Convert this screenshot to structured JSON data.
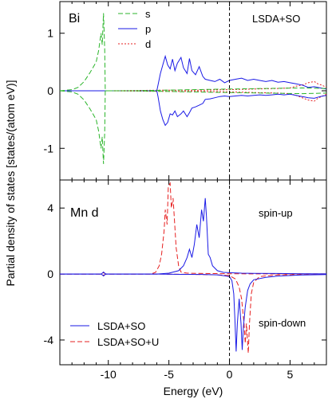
{
  "chart_data": [
    {
      "type": "line",
      "panel_label": "Bi",
      "method_label": "LSDA+SO",
      "xlim": [
        -14,
        8
      ],
      "ylim": [
        -1.55,
        1.55
      ],
      "x_ticks": [
        -10,
        -5,
        0,
        5
      ],
      "y_ticks": [
        -1,
        0,
        1
      ],
      "y_tick_labels": [
        "-1",
        "0",
        "1"
      ],
      "legend": {
        "position": "top-center"
      },
      "series": [
        {
          "name": "s",
          "color": "#2bb52b",
          "dash": "dashed",
          "up": [
            [
              -14,
              0
            ],
            [
              -13.5,
              0.01
            ],
            [
              -13,
              0.02
            ],
            [
              -12.5,
              0.06
            ],
            [
              -12,
              0.16
            ],
            [
              -11.5,
              0.32
            ],
            [
              -11,
              0.5
            ],
            [
              -10.8,
              0.7
            ],
            [
              -10.6,
              1.0
            ],
            [
              -10.5,
              0.8
            ],
            [
              -10.4,
              1.35
            ],
            [
              -10.3,
              0.72
            ],
            [
              -10.25,
              0
            ],
            [
              -8,
              0
            ],
            [
              -5.5,
              0.01
            ],
            [
              -3,
              0.02
            ],
            [
              0,
              0.03
            ],
            [
              3,
              0.04
            ],
            [
              6,
              0.05
            ],
            [
              8,
              0.04
            ]
          ],
          "down": [
            [
              -14,
              0
            ],
            [
              -13.5,
              -0.01
            ],
            [
              -13,
              -0.02
            ],
            [
              -12.5,
              -0.06
            ],
            [
              -12,
              -0.16
            ],
            [
              -11.5,
              -0.32
            ],
            [
              -11,
              -0.5
            ],
            [
              -10.8,
              -0.7
            ],
            [
              -10.6,
              -1.0
            ],
            [
              -10.5,
              -0.8
            ],
            [
              -10.4,
              -1.27
            ],
            [
              -10.3,
              -0.72
            ],
            [
              -10.25,
              0
            ],
            [
              -8,
              0
            ],
            [
              -5.5,
              -0.01
            ],
            [
              -3,
              -0.02
            ],
            [
              0,
              -0.03
            ],
            [
              3,
              -0.04
            ],
            [
              6,
              -0.05
            ],
            [
              8,
              -0.04
            ]
          ]
        },
        {
          "name": "p",
          "color": "#1a1ae6",
          "dash": "solid",
          "up": [
            [
              -14,
              0
            ],
            [
              -6,
              0
            ],
            [
              -5.9,
              0.1
            ],
            [
              -5.7,
              0.3
            ],
            [
              -5.5,
              0.45
            ],
            [
              -5.3,
              0.6
            ],
            [
              -5.1,
              0.45
            ],
            [
              -4.9,
              0.38
            ],
            [
              -4.7,
              0.55
            ],
            [
              -4.5,
              0.35
            ],
            [
              -4.3,
              0.48
            ],
            [
              -4.0,
              0.58
            ],
            [
              -3.8,
              0.4
            ],
            [
              -3.5,
              0.3
            ],
            [
              -3.3,
              0.56
            ],
            [
              -3.1,
              0.35
            ],
            [
              -2.8,
              0.28
            ],
            [
              -2.5,
              0.42
            ],
            [
              -2.2,
              0.25
            ],
            [
              -2.0,
              0.2
            ],
            [
              -1.6,
              0.18
            ],
            [
              -1.2,
              0.16
            ],
            [
              -0.8,
              0.2
            ],
            [
              -0.4,
              0.14
            ],
            [
              0,
              0.18
            ],
            [
              0.5,
              0.2
            ],
            [
              1,
              0.22
            ],
            [
              1.5,
              0.18
            ],
            [
              2,
              0.2
            ],
            [
              2.5,
              0.18
            ],
            [
              3,
              0.16
            ],
            [
              3.5,
              0.18
            ],
            [
              4,
              0.15
            ],
            [
              4.5,
              0.16
            ],
            [
              5,
              0.14
            ],
            [
              5.5,
              0.12
            ],
            [
              6,
              0.1
            ],
            [
              6.5,
              0.06
            ],
            [
              7,
              0.07
            ],
            [
              7.5,
              0.05
            ],
            [
              8,
              0.03
            ]
          ],
          "down": [
            [
              -14,
              0
            ],
            [
              -6,
              0
            ],
            [
              -5.9,
              -0.1
            ],
            [
              -5.7,
              -0.35
            ],
            [
              -5.5,
              -0.5
            ],
            [
              -5.3,
              -0.6
            ],
            [
              -5.1,
              -0.55
            ],
            [
              -4.9,
              -0.4
            ],
            [
              -4.7,
              -0.42
            ],
            [
              -4.5,
              -0.35
            ],
            [
              -4.3,
              -0.45
            ],
            [
              -4.0,
              -0.4
            ],
            [
              -3.8,
              -0.35
            ],
            [
              -3.5,
              -0.45
            ],
            [
              -3.3,
              -0.38
            ],
            [
              -3.1,
              -0.3
            ],
            [
              -2.8,
              -0.28
            ],
            [
              -2.5,
              -0.25
            ],
            [
              -2.2,
              -0.22
            ],
            [
              -2.0,
              -0.15
            ],
            [
              -1.6,
              -0.14
            ],
            [
              -1.2,
              -0.12
            ],
            [
              -0.8,
              -0.1
            ],
            [
              -0.4,
              -0.09
            ],
            [
              0,
              -0.1
            ],
            [
              0.5,
              -0.09
            ],
            [
              1,
              -0.08
            ],
            [
              1.5,
              -0.09
            ],
            [
              2,
              -0.08
            ],
            [
              2.5,
              -0.07
            ],
            [
              3,
              -0.08
            ],
            [
              3.5,
              -0.07
            ],
            [
              4,
              -0.06
            ],
            [
              4.5,
              -0.07
            ],
            [
              5,
              -0.06
            ],
            [
              5.5,
              -0.08
            ],
            [
              6,
              -0.1
            ],
            [
              6.5,
              -0.12
            ],
            [
              7,
              -0.13
            ],
            [
              7.5,
              -0.1
            ],
            [
              8,
              -0.08
            ]
          ]
        },
        {
          "name": "d",
          "color": "#e62020",
          "dash": "dotted",
          "up": [
            [
              -14,
              0
            ],
            [
              -10,
              0
            ],
            [
              -6,
              0.01
            ],
            [
              -3,
              0.01
            ],
            [
              0,
              0.02
            ],
            [
              2,
              0.03
            ],
            [
              4,
              0.04
            ],
            [
              5,
              0.05
            ],
            [
              5.5,
              0.08
            ],
            [
              6,
              0.1
            ],
            [
              6.5,
              0.14
            ],
            [
              7,
              0.16
            ],
            [
              7.3,
              0.12
            ],
            [
              7.6,
              0.1
            ],
            [
              8,
              0.06
            ]
          ],
          "down": [
            [
              -14,
              0
            ],
            [
              -10,
              0
            ],
            [
              -6,
              -0.01
            ],
            [
              -3,
              -0.01
            ],
            [
              0,
              -0.02
            ],
            [
              2,
              -0.03
            ],
            [
              4,
              -0.04
            ],
            [
              5,
              -0.05
            ],
            [
              5.5,
              -0.08
            ],
            [
              6,
              -0.12
            ],
            [
              6.5,
              -0.16
            ],
            [
              7,
              -0.18
            ],
            [
              7.3,
              -0.13
            ],
            [
              7.6,
              -0.1
            ],
            [
              8,
              -0.06
            ]
          ]
        }
      ]
    },
    {
      "type": "line",
      "panel_label": "Mn d",
      "xlim": [
        -14,
        8
      ],
      "ylim": [
        -5.5,
        5.7
      ],
      "x_ticks": [
        -10,
        -5,
        0,
        5
      ],
      "x_tick_labels": [
        "-10",
        "-5",
        "0",
        "5"
      ],
      "y_ticks": [
        -4,
        0,
        4
      ],
      "y_tick_labels": [
        "-4",
        "0",
        "4"
      ],
      "spin_up_label": "spin-up",
      "spin_down_label": "spin-down",
      "xlabel": "Energy (eV)",
      "legend": {
        "position": "bottom-left"
      },
      "series": [
        {
          "name": "LSDA+SO",
          "color": "#1a1ae6",
          "dash": "solid",
          "up": [
            [
              -14,
              0
            ],
            [
              -10.6,
              0
            ],
            [
              -10.5,
              0.05
            ],
            [
              -10.4,
              0.12
            ],
            [
              -10.3,
              0.05
            ],
            [
              -10.2,
              0
            ],
            [
              -6,
              0
            ],
            [
              -5,
              0.05
            ],
            [
              -4.2,
              0.2
            ],
            [
              -3.8,
              0.5
            ],
            [
              -3.5,
              1.0
            ],
            [
              -3.3,
              1.5
            ],
            [
              -3.1,
              1.0
            ],
            [
              -2.9,
              1.8
            ],
            [
              -2.7,
              3.0
            ],
            [
              -2.5,
              2.2
            ],
            [
              -2.3,
              3.9
            ],
            [
              -2.15,
              3.2
            ],
            [
              -2.0,
              4.6
            ],
            [
              -1.9,
              3.5
            ],
            [
              -1.75,
              1.2
            ],
            [
              -1.6,
              1.0
            ],
            [
              -1.4,
              0.5
            ],
            [
              -1.0,
              0.2
            ],
            [
              -0.5,
              0.1
            ],
            [
              0,
              0.08
            ],
            [
              1,
              0.05
            ],
            [
              2,
              0.04
            ],
            [
              4,
              0.03
            ],
            [
              6,
              0.02
            ],
            [
              8,
              0.01
            ]
          ],
          "down": [
            [
              -14,
              0
            ],
            [
              -10.6,
              0
            ],
            [
              -10.5,
              -0.05
            ],
            [
              -10.4,
              -0.12
            ],
            [
              -10.3,
              -0.05
            ],
            [
              -10.2,
              0
            ],
            [
              -6,
              0
            ],
            [
              -4,
              -0.02
            ],
            [
              -2,
              -0.03
            ],
            [
              -1,
              -0.05
            ],
            [
              -0.5,
              -0.1
            ],
            [
              0,
              -0.15
            ],
            [
              0.2,
              -0.4
            ],
            [
              0.35,
              -1.2
            ],
            [
              0.45,
              -2.8
            ],
            [
              0.55,
              -4.7
            ],
            [
              0.65,
              -3.0
            ],
            [
              0.8,
              -1.5
            ],
            [
              0.95,
              -3.0
            ],
            [
              1.05,
              -4.6
            ],
            [
              1.15,
              -3.2
            ],
            [
              1.3,
              -2.0
            ],
            [
              1.5,
              -1.0
            ],
            [
              1.7,
              -0.6
            ],
            [
              2,
              -0.35
            ],
            [
              3,
              -0.2
            ],
            [
              4,
              -0.12
            ],
            [
              6,
              -0.06
            ],
            [
              8,
              -0.03
            ]
          ]
        },
        {
          "name": "LSDA+SO+U",
          "color": "#e62020",
          "dash": "dashed",
          "up": [
            [
              -14,
              0
            ],
            [
              -10.6,
              0
            ],
            [
              -10.5,
              0.04
            ],
            [
              -10.4,
              0.08
            ],
            [
              -10.3,
              0.04
            ],
            [
              -10.2,
              0
            ],
            [
              -6.5,
              0
            ],
            [
              -6.1,
              0.1
            ],
            [
              -5.8,
              0.5
            ],
            [
              -5.6,
              1.2
            ],
            [
              -5.4,
              2.6
            ],
            [
              -5.3,
              3.9
            ],
            [
              -5.15,
              3.0
            ],
            [
              -5.05,
              5.3
            ],
            [
              -4.9,
              5.5
            ],
            [
              -4.8,
              4.0
            ],
            [
              -4.65,
              4.6
            ],
            [
              -4.5,
              2.8
            ],
            [
              -4.4,
              1.6
            ],
            [
              -4.2,
              0.5
            ],
            [
              -4.0,
              0.12
            ],
            [
              -3.5,
              0.05
            ],
            [
              -2,
              0.03
            ],
            [
              0,
              0.02
            ],
            [
              2,
              0.01
            ],
            [
              8,
              0.01
            ]
          ],
          "down": [
            [
              -14,
              0
            ],
            [
              -10.6,
              0
            ],
            [
              -10.5,
              -0.04
            ],
            [
              -10.4,
              -0.08
            ],
            [
              -10.3,
              -0.04
            ],
            [
              -10.2,
              0
            ],
            [
              -6,
              0
            ],
            [
              -3,
              -0.02
            ],
            [
              -1,
              -0.05
            ],
            [
              0,
              -0.1
            ],
            [
              0.5,
              -0.3
            ],
            [
              0.8,
              -0.8
            ],
            [
              1.0,
              -1.5
            ],
            [
              1.2,
              -3.0
            ],
            [
              1.3,
              -4.2
            ],
            [
              1.4,
              -3.0
            ],
            [
              1.55,
              -4.8
            ],
            [
              1.65,
              -3.0
            ],
            [
              1.8,
              -1.2
            ],
            [
              2.0,
              -0.5
            ],
            [
              2.5,
              -0.15
            ],
            [
              4,
              -0.05
            ],
            [
              8,
              -0.02
            ]
          ]
        }
      ]
    }
  ],
  "shared": {
    "ylabel": "Partial  density  of  states   [states/(atom eV)]",
    "fermi_energy": 0
  }
}
